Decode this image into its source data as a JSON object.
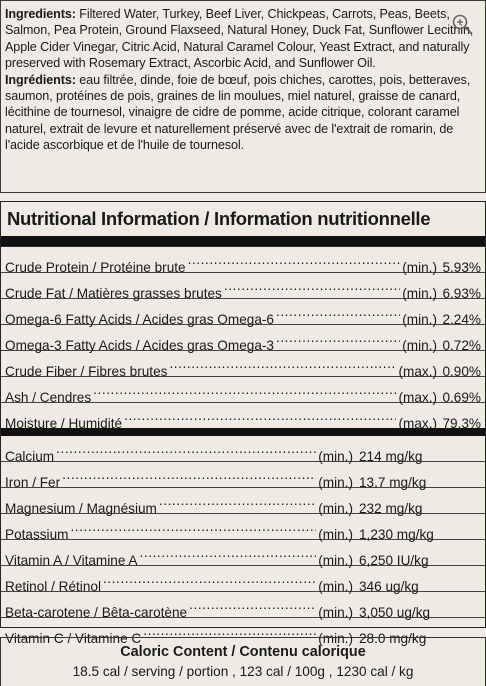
{
  "ingredients": {
    "en_label": "Ingredients:",
    "en_text": "Filtered Water, Turkey, Beef Liver, Chickpeas, Carrots, Peas, Beets, Salmon, Pea Protein, Ground Flaxseed, Natural Honey, Duck Fat, Sunflower Lecithin, Apple Cider Vinegar, Citric Acid, Natural Caramel Colour, Yeast Extract, and naturally preserved with Rosemary Extract, Ascorbic Acid, and Sunflower Oil.",
    "fr_label": "Ingrédients:",
    "fr_text": "eau filtrée, dinde, foie de bœuf, pois chiches, carottes, pois, betteraves, saumon, protéines de pois, graines de lin moulues, miel naturel, graisse de canard, lécithine de tournesol, vinaigre de cidre de pomme, acide citrique, colorant caramel naturel, extrait de levure et naturellement préservé avec de l'extrait de romarin, de l'acide ascorbique et de l'huile de tournesol."
  },
  "nutrition": {
    "title": "Nutritional Information / Information nutritionnelle",
    "analysis": [
      {
        "label": "Crude Protein / Protéine brute",
        "qualifier": "(min.)",
        "value": "5.93%"
      },
      {
        "label": "Crude Fat / Matières grasses brutes",
        "qualifier": "(min.)",
        "value": "6.93%"
      },
      {
        "label": "Omega-6 Fatty Acids / Acides gras Omega-6",
        "qualifier": "(min.)",
        "value": "2.24%"
      },
      {
        "label": "Omega-3 Fatty Acids / Acides gras Omega-3",
        "qualifier": "(min.)",
        "value": "0.72%"
      },
      {
        "label": "Crude Fiber / Fibres brutes",
        "qualifier": "(max.)",
        "value": "0.90%"
      },
      {
        "label": "Ash / Cendres",
        "qualifier": "(max.)",
        "value": "0.69%"
      },
      {
        "label": "Moisture / Humidité",
        "qualifier": "(max.)",
        "value": "79.3%"
      }
    ],
    "minerals": [
      {
        "label": "Calcium",
        "qualifier": "(min.)",
        "value": "214 mg/kg"
      },
      {
        "label": "Iron / Fer",
        "qualifier": "(min.)",
        "value": "13.7 mg/kg"
      },
      {
        "label": "Magnesium / Magnésium",
        "qualifier": "(min.)",
        "value": "232 mg/kg"
      },
      {
        "label": "Potassium",
        "qualifier": "(min.)",
        "value": "1,230 mg/kg"
      },
      {
        "label": "Vitamin A / Vitamine A",
        "qualifier": "(min.)",
        "value": "6,250 IU/kg"
      },
      {
        "label": "Retinol / Rétinol",
        "qualifier": "(min.)",
        "value": "346 ug/kg"
      },
      {
        "label": "Beta-carotene / Bêta-carotène",
        "qualifier": "(min.)",
        "value": "3,050 ug/kg"
      },
      {
        "label": "Vitamin C / Vitamine C",
        "qualifier": "(min.)",
        "value": "28.0 mg/kg"
      }
    ]
  },
  "calories": {
    "title": "Caloric Content / Contenu calorique",
    "values": "18.5 cal / serving / portion ,  123 cal / 100g ,  1230 cal / kg"
  },
  "icons": {
    "zoom": "zoom-in-icon"
  }
}
